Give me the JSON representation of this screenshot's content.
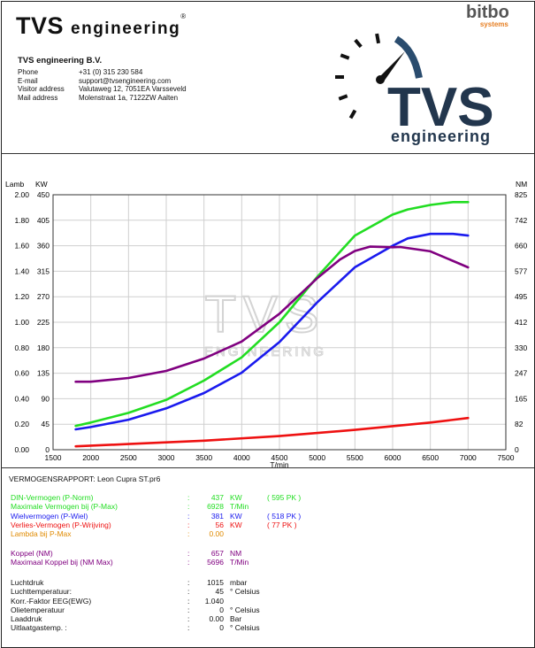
{
  "header": {
    "brand_name": "TVS",
    "brand_sub": "engineering",
    "brand_reg": "®",
    "company": "TVS engineering B.V.",
    "contacts": [
      {
        "label": "Phone",
        "value": "+31 (0) 315 230 584"
      },
      {
        "label": "E-mail",
        "value": "support@tvsengineering.com"
      },
      {
        "label": "Visitor address",
        "value": "Valutaweg 12,  7051EA  Varsseveld"
      },
      {
        "label": "Mail address",
        "value": "Molenstraat 1a, 7122ZW  Aalten"
      }
    ],
    "partner_logo": {
      "word": "bitbo",
      "tag": "systems"
    },
    "logo": {
      "top": "TVS",
      "bottom": "engineering"
    }
  },
  "colors": {
    "din": "#22dd22",
    "wheel": "#1a1aee",
    "loss": "#ee1111",
    "lambda": "#e08a00",
    "torque": "#800080",
    "text": "#111111"
  },
  "chart_data": {
    "type": "line",
    "title": "",
    "xlabel": "T/min",
    "x_range": [
      1500,
      7500
    ],
    "x_ticks": [
      1500,
      2000,
      2500,
      3000,
      3500,
      4000,
      4500,
      5000,
      5500,
      6000,
      6500,
      7000,
      7500
    ],
    "left_axis_titles": [
      "Lamb",
      "KW"
    ],
    "right_axis_title": "NM",
    "kw_range": [
      0,
      450
    ],
    "kw_ticks": [
      0,
      45,
      90,
      135,
      180,
      225,
      270,
      315,
      360,
      405,
      450
    ],
    "lambda_range": [
      0,
      2
    ],
    "lambda_ticks": [
      "0.00",
      "0.20",
      "0.40",
      "0.60",
      "0.80",
      "1.00",
      "1.20",
      "1.40",
      "1.60",
      "1.80",
      "2.00"
    ],
    "nm_ticks": [
      0,
      82,
      165,
      247,
      330,
      412,
      495,
      577,
      660,
      742,
      825
    ],
    "watermark": {
      "top": "TVS",
      "bottom": "ENGINEERING"
    },
    "series": [
      {
        "name": "DIN-Vermogen",
        "axis": "kw",
        "color": "#22dd22",
        "x": [
          1800,
          2000,
          2500,
          3000,
          3500,
          4000,
          4500,
          5000,
          5500,
          6000,
          6200,
          6500,
          6800,
          7000
        ],
        "y": [
          42,
          48,
          65,
          88,
          122,
          163,
          225,
          305,
          378,
          415,
          424,
          432,
          437,
          437
        ]
      },
      {
        "name": "Wielvermogen",
        "axis": "kw",
        "color": "#1a1aee",
        "x": [
          1800,
          2000,
          2500,
          3000,
          3500,
          4000,
          4500,
          5000,
          5500,
          6000,
          6200,
          6500,
          6800,
          7000
        ],
        "y": [
          36,
          40,
          53,
          73,
          100,
          136,
          190,
          260,
          322,
          360,
          373,
          381,
          381,
          378
        ]
      },
      {
        "name": "Verlies-Vermogen",
        "axis": "kw",
        "color": "#ee1111",
        "x": [
          1800,
          2500,
          3500,
          4500,
          5500,
          6500,
          7000
        ],
        "y": [
          6,
          10,
          16,
          24,
          35,
          48,
          56
        ]
      },
      {
        "name": "Koppel",
        "axis": "nm",
        "color": "#800080",
        "x": [
          1800,
          2000,
          2500,
          3000,
          3500,
          4000,
          4500,
          5000,
          5300,
          5500,
          5700,
          6000,
          6100,
          6500,
          7000
        ],
        "y": [
          220,
          220,
          232,
          255,
          295,
          350,
          440,
          555,
          615,
          643,
          657,
          655,
          656,
          642,
          590
        ]
      }
    ]
  },
  "report": {
    "title": "VERMOGENSRAPPORT: Leon Cupra ST.pr6",
    "group1": [
      {
        "label": "DIN-Vermogen (P-Norm)",
        "value": "437",
        "unit": "KW",
        "extra": "( 595 PK )",
        "color": "#22dd22"
      },
      {
        "label": "Maximale Vermogen bij (P-Max)",
        "value": "6928",
        "unit": "T/Min",
        "extra": "",
        "color": "#22dd22"
      },
      {
        "label": "Wielvermogen (P-Wiel)",
        "value": "381",
        "unit": "KW",
        "extra": "( 518 PK )",
        "color": "#1a1aee"
      },
      {
        "label": "Verlies-Vermogen (P-Wrijving)",
        "value": "56",
        "unit": "KW",
        "extra": "( 77 PK )",
        "color": "#ee1111"
      },
      {
        "label": "Lambda bij P-Max",
        "value": "0.00",
        "unit": "",
        "extra": "",
        "color": "#e08a00"
      }
    ],
    "group2": [
      {
        "label": "Koppel (NM)",
        "value": "657",
        "unit": "NM",
        "color": "#800080"
      },
      {
        "label": "Maximaal Koppel bij (NM Max)",
        "value": "5696",
        "unit": "T/Min",
        "color": "#800080"
      }
    ],
    "group3": [
      {
        "label": "Luchtdruk",
        "value": "1015",
        "unit": "mbar"
      },
      {
        "label": "Luchttemperatuur:",
        "value": "45",
        "unit": "° Celsius"
      },
      {
        "label": "Korr.-Faktor EEG(EWG)",
        "value": "1.040",
        "unit": ""
      },
      {
        "label": "Olietemperatuur",
        "value": "0",
        "unit": "° Celsius"
      },
      {
        "label": "Laaddruk",
        "value": "0.00",
        "unit": "Bar"
      },
      {
        "label": "Uitlaatgastemp. :",
        "value": "0",
        "unit": "° Celsius"
      }
    ]
  }
}
